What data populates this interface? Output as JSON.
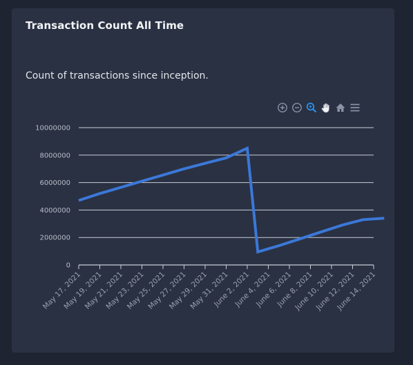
{
  "card": {
    "title": "Transaction Count All Time",
    "subtitle": "Count of transactions since inception."
  },
  "toolbar": {
    "items": [
      {
        "name": "zoom-in-icon"
      },
      {
        "name": "zoom-out-icon"
      },
      {
        "name": "selection-zoom-icon",
        "active": true
      },
      {
        "name": "pan-hand-icon"
      },
      {
        "name": "home-reset-icon"
      },
      {
        "name": "menu-icon"
      }
    ]
  },
  "colors": {
    "background": "#1f2432",
    "card": "#2a3142",
    "line": "#3b78d8",
    "grid": "#c9ced8",
    "toolbar_icon": "#8a93a6",
    "toolbar_active": "#2d8fe8"
  },
  "chart_data": {
    "type": "line",
    "title": "",
    "xlabel": "",
    "ylabel": "",
    "ylim": [
      0,
      10000000
    ],
    "y_ticks": [
      "0",
      "2000000",
      "4000000",
      "6000000",
      "8000000",
      "10000000"
    ],
    "x_ticks": [
      "May 17, 2021",
      "May 19, 2021",
      "May 21, 2021",
      "May 23, 2021",
      "May 25, 2021",
      "May 27, 2021",
      "May 29, 2021",
      "May 31, 2021",
      "June 2, 2021",
      "June 4, 2021",
      "June 6, 2021",
      "June 8, 2021",
      "June 10, 2021",
      "June 12, 2021",
      "June 14, 2021"
    ],
    "series": [
      {
        "points": [
          {
            "x": "2021-05-17",
            "y": 4700000
          },
          {
            "x": "2021-05-19",
            "y": 5200000
          },
          {
            "x": "2021-05-21",
            "y": 5650000
          },
          {
            "x": "2021-05-23",
            "y": 6100000
          },
          {
            "x": "2021-05-25",
            "y": 6550000
          },
          {
            "x": "2021-05-27",
            "y": 7000000
          },
          {
            "x": "2021-05-29",
            "y": 7400000
          },
          {
            "x": "2021-05-31",
            "y": 7800000
          },
          {
            "x": "2021-06-02",
            "y": 8500000
          },
          {
            "x": "2021-06-03",
            "y": 950000
          },
          {
            "x": "2021-06-05",
            "y": 1400000
          },
          {
            "x": "2021-06-07",
            "y": 1900000
          },
          {
            "x": "2021-06-09",
            "y": 2400000
          },
          {
            "x": "2021-06-11",
            "y": 2900000
          },
          {
            "x": "2021-06-13",
            "y": 3300000
          },
          {
            "x": "2021-06-15",
            "y": 3400000
          }
        ]
      }
    ],
    "grid": true,
    "legend": "none"
  }
}
